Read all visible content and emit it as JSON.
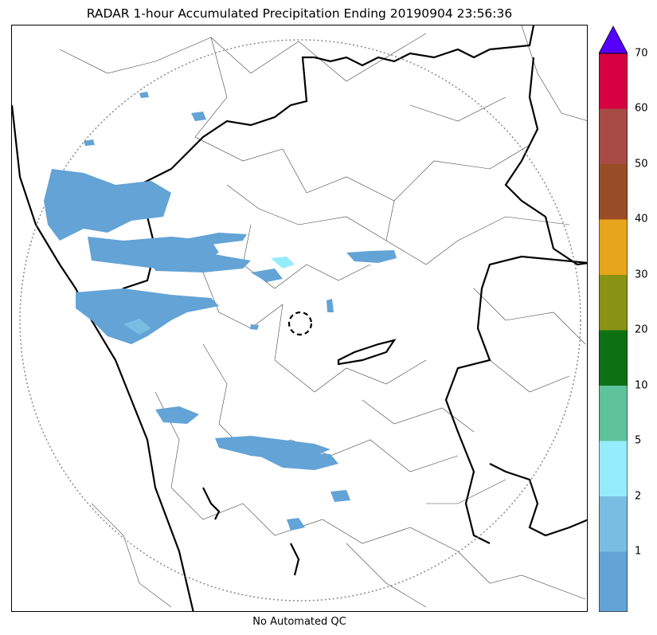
{
  "title": "RADAR 1-hour Accumulated Precipitation Ending 20190904 23:56:36",
  "footer_label": "No Automated QC",
  "colorbar": {
    "extend": "max",
    "extend_color": "#5500ff",
    "levels": [
      {
        "label": "",
        "color": "#63a3d6"
      },
      {
        "label": "1",
        "color": "#7abde2"
      },
      {
        "label": "2",
        "color": "#95ecfc"
      },
      {
        "label": "5",
        "color": "#5ec39a"
      },
      {
        "label": "10",
        "color": "#0d7114"
      },
      {
        "label": "20",
        "color": "#8a9314"
      },
      {
        "label": "30",
        "color": "#e6a51a"
      },
      {
        "label": "40",
        "color": "#994d27"
      },
      {
        "label": "50",
        "color": "#a64b45"
      },
      {
        "label": "60",
        "color": "#d60042"
      },
      {
        "label": "70",
        "color": ""
      }
    ]
  },
  "map": {
    "radar_range_ring": "dotted circle",
    "radar_site_marker": "dashed circle",
    "coastline_color": "#000000",
    "state_border_color": "#000000",
    "district_border_color": "#444444"
  }
}
